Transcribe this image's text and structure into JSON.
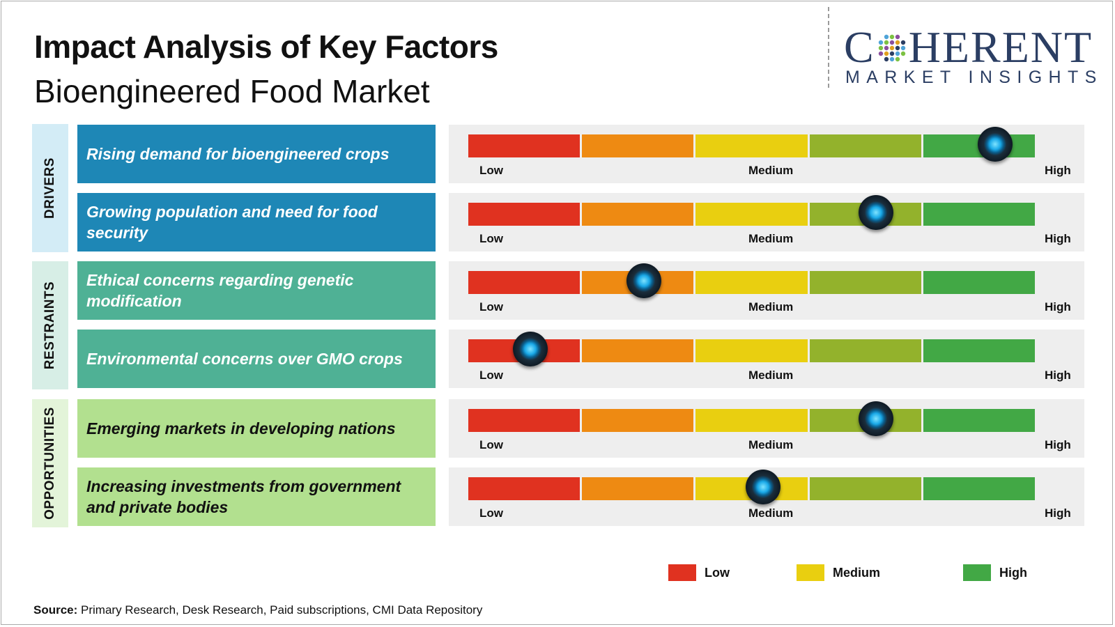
{
  "header": {
    "title": "Impact Analysis of Key Factors",
    "subtitle": "Bioengineered Food Market"
  },
  "logo": {
    "word_c": "C",
    "word_rest": "HERENT",
    "sub": "MARKET INSIGHTS"
  },
  "scale_labels": {
    "low": "Low",
    "medium": "Medium",
    "high": "High"
  },
  "colors": {
    "segments": [
      "#e03220",
      "#ee8a12",
      "#e9cf10",
      "#93b22c",
      "#42a845"
    ],
    "drivers_band": "#d3ecf6",
    "drivers_box": "#1e87b6",
    "restraints_band": "#d7eee6",
    "restraints_box": "#4fb195",
    "opportunities_band": "#e3f4d9",
    "opportunities_box": "#b2e08f"
  },
  "categories": [
    {
      "name": "DRIVERS"
    },
    {
      "name": "RESTRAINTS"
    },
    {
      "name": "OPPORTUNITIES"
    }
  ],
  "chart_data": {
    "type": "table",
    "scale": [
      "Low",
      "Medium",
      "High"
    ],
    "value_range": [
      0,
      1
    ],
    "rows": [
      {
        "category": "DRIVERS",
        "factor": "Rising demand for bioengineered crops",
        "impact": 0.93
      },
      {
        "category": "DRIVERS",
        "factor": "Growing population and need for food security",
        "impact": 0.72
      },
      {
        "category": "RESTRAINTS",
        "factor": "Ethical concerns regarding genetic modification",
        "impact": 0.31
      },
      {
        "category": "RESTRAINTS",
        "factor": "Environmental concerns over GMO crops",
        "impact": 0.11
      },
      {
        "category": "OPPORTUNITIES",
        "factor": "Emerging markets in developing nations",
        "impact": 0.72
      },
      {
        "category": "OPPORTUNITIES",
        "factor": "Increasing investments from government and private bodies",
        "impact": 0.52
      }
    ]
  },
  "legend": [
    {
      "label": "Low",
      "color": "#e03220"
    },
    {
      "label": "Medium",
      "color": "#e9cf10"
    },
    {
      "label": "High",
      "color": "#42a845"
    }
  ],
  "source": {
    "label": "Source:",
    "text": " Primary Research, Desk Research, Paid subscriptions, CMI Data Repository"
  }
}
